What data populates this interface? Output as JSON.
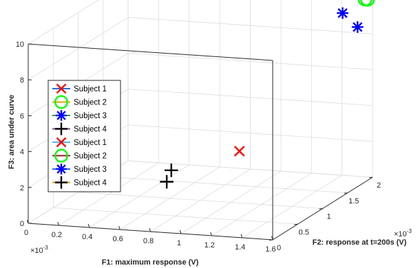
{
  "chart_data": {
    "type": "scatter3d",
    "xlabel": "F1: maximum response (V)",
    "ylabel": "F2: response at t=200s (V)",
    "zlabel": "F3: area under curve",
    "x_exponent": "×10",
    "x_exponent_power": "-3",
    "y_exponent": "×10",
    "y_exponent_power": "-3",
    "xlim": [
      0,
      0.0016
    ],
    "ylim": [
      0,
      0.002
    ],
    "zlim": [
      0,
      10
    ],
    "x_ticks": [
      "0",
      "0.2",
      "0.4",
      "0.6",
      "0.8",
      "1",
      "1.2",
      "1.4",
      "1.6"
    ],
    "y_ticks": [
      "0",
      "0.5",
      "1",
      "1.5",
      "2"
    ],
    "z_ticks": [
      "0",
      "2",
      "4",
      "6",
      "8",
      "10"
    ],
    "grid": true,
    "legend_position": "left",
    "series": [
      {
        "name": "Subject 1",
        "marker": "x",
        "color": "#ff0000",
        "points": [
          {
            "x": 0.00132,
            "y": 0.00019,
            "z": 4.45
          }
        ]
      },
      {
        "name": "Subject 2",
        "marker": "circle",
        "color": "#00ff00",
        "points": [
          {
            "x": 0.0016,
            "y": 0.0019,
            "z": 10.1
          },
          {
            "x": 0.0016,
            "y": 0.00185,
            "z": 10.2
          }
        ]
      },
      {
        "name": "Subject 3",
        "marker": "asterisk",
        "color": "#0000ff",
        "points": [
          {
            "x": 0.0016,
            "y": 0.0014,
            "z": 10.2
          },
          {
            "x": 0.0016,
            "y": 0.0017,
            "z": 8.9
          }
        ]
      },
      {
        "name": "Subject 4",
        "marker": "plus",
        "color": "#000000",
        "points": [
          {
            "x": 0.00092,
            "y": 5e-05,
            "z": 3.4
          },
          {
            "x": 0.0009,
            "y": 2e-05,
            "z": 2.8
          }
        ]
      }
    ],
    "legend": [
      {
        "name": "Subject 1",
        "marker": "x",
        "color": "#ff0000",
        "line_color": "#1f6ed4"
      },
      {
        "name": "Subject 2",
        "marker": "circle",
        "color": "#00ff00",
        "line_color": "#e0a000"
      },
      {
        "name": "Subject 3",
        "marker": "asterisk",
        "color": "#0000ff",
        "line_color": "#2ca02c"
      },
      {
        "name": "Subject 4",
        "marker": "plus",
        "color": "#000000",
        "line_color": "#8e3fa6"
      },
      {
        "name": "Subject 1",
        "marker": "x",
        "color": "#ff0000",
        "line_color": "#4db8e8"
      },
      {
        "name": "Subject 2",
        "marker": "circle",
        "color": "#00ff00",
        "line_color": "#a2142f"
      },
      {
        "name": "Subject 3",
        "marker": "asterisk",
        "color": "#0000ff",
        "line_color": "#1f6ed4"
      },
      {
        "name": "Subject 4",
        "marker": "plus",
        "color": "#000000",
        "line_color": "#e0a000"
      }
    ]
  }
}
